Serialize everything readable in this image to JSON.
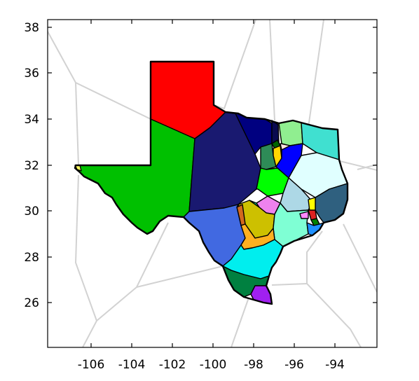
{
  "chart_data": {
    "type": "map",
    "xlim": [
      -108,
      -92.1
    ],
    "ylim": [
      24.1,
      38.3
    ],
    "x_ticks": [
      -106,
      -104,
      -102,
      -100,
      -98,
      -96,
      -94
    ],
    "y_ticks": [
      26,
      28,
      30,
      32,
      34,
      36,
      38
    ],
    "x_tick_labels": [
      "-106",
      "-104",
      "-102",
      "-100",
      "-98",
      "-96",
      "-94"
    ],
    "y_tick_labels": [
      "26",
      "28",
      "30",
      "32",
      "34",
      "36",
      "38"
    ],
    "region_colors": [
      "#ff0000",
      "#00c000",
      "#191970",
      "#000080",
      "#4169e1",
      "#00eeee",
      "#008040",
      "#a020f0",
      "#90ee90",
      "#40e0d0",
      "#2e8b57",
      "#0000ff",
      "#e0ffff",
      "#00ff00",
      "#ee82ee",
      "#add8e6",
      "#2f607f",
      "#cdc000",
      "#ffb020",
      "#7fffd4",
      "#d2691e",
      "#1e90ff",
      "#ffff00",
      "#dd2222",
      "#008000"
    ],
    "grid": false,
    "legend": "none"
  }
}
